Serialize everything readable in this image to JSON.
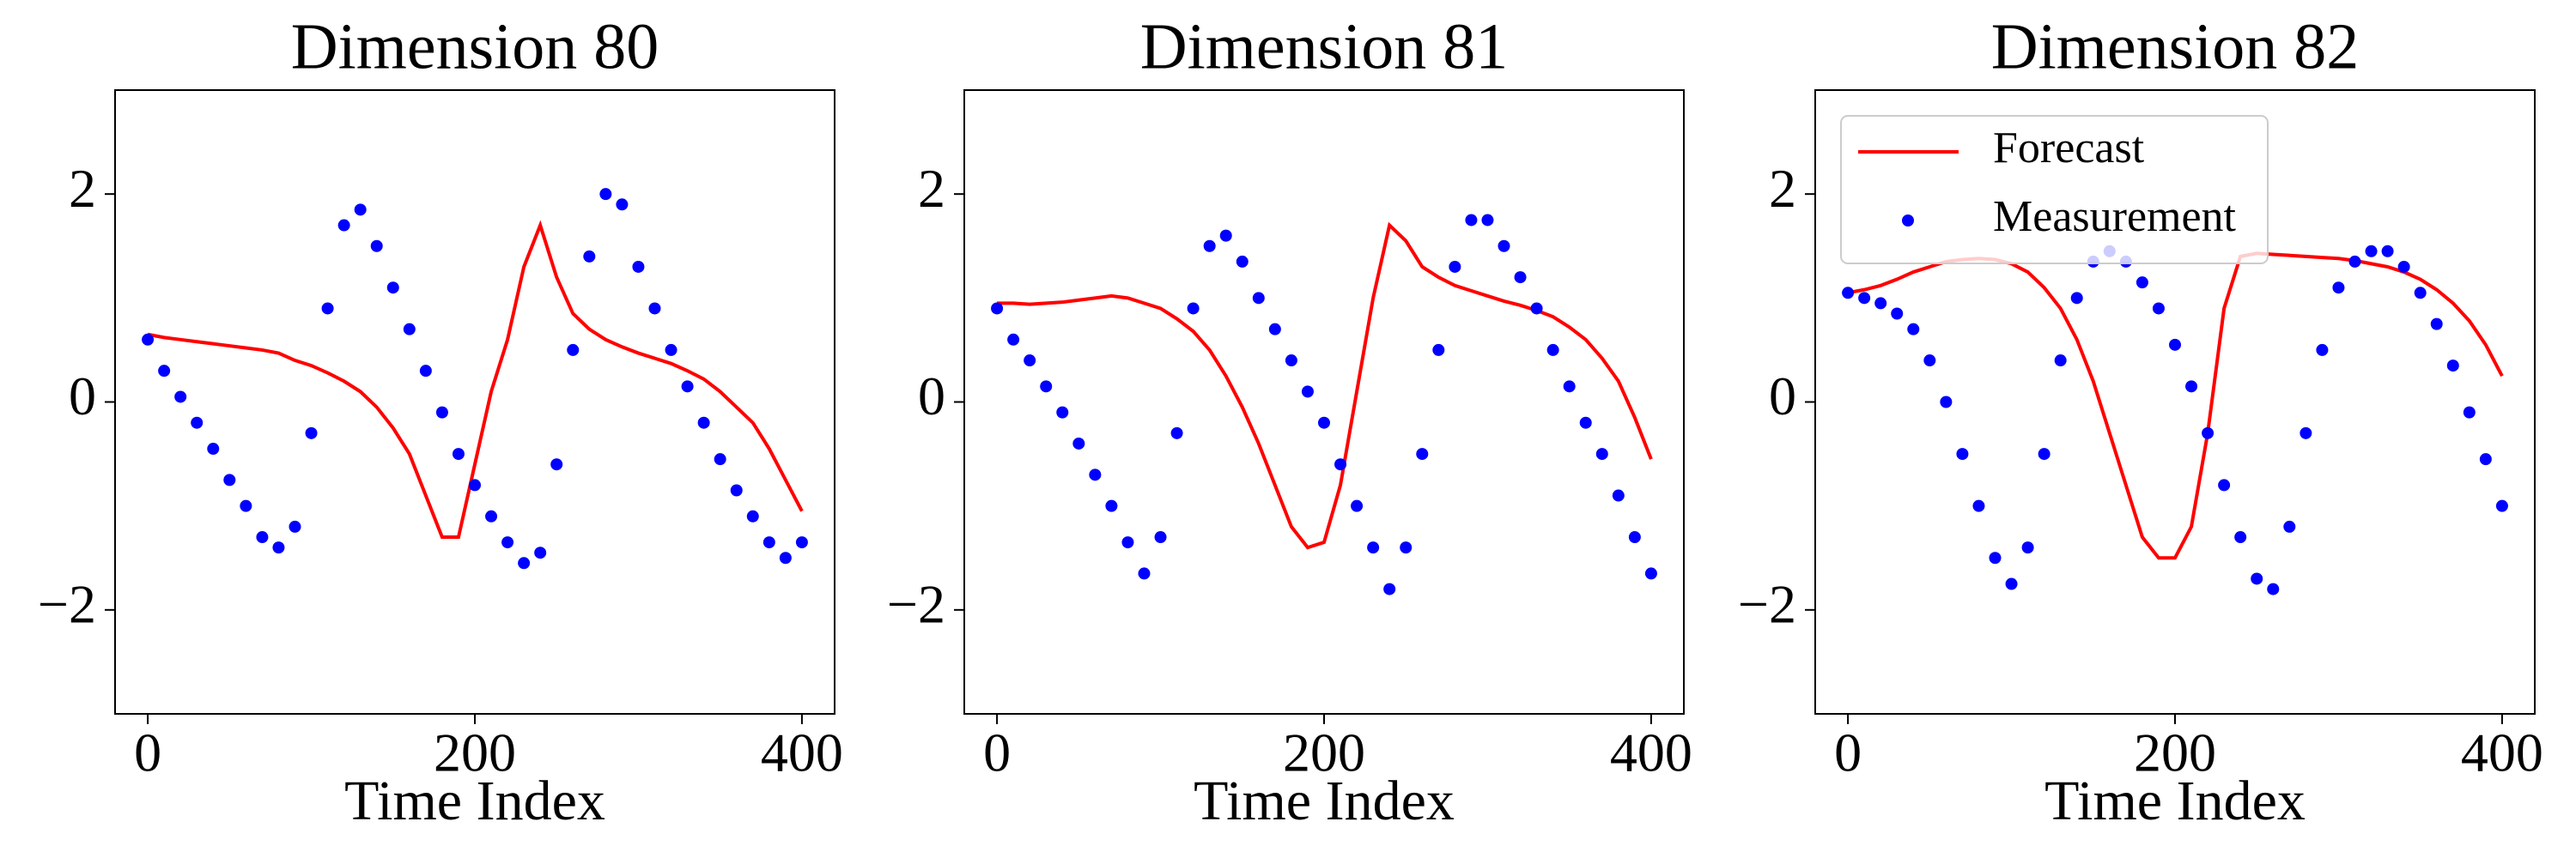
{
  "chart_data": [
    {
      "type": "line",
      "title": "Dimension 80",
      "xlabel": "Time Index",
      "xlim": [
        -20,
        420
      ],
      "ylim": [
        -3,
        3
      ],
      "xticks": [
        0,
        200,
        400
      ],
      "yticks": [
        {
          "value": -2,
          "label": "−2"
        },
        0,
        2
      ],
      "x": [
        0,
        10,
        20,
        30,
        40,
        50,
        60,
        70,
        80,
        90,
        100,
        110,
        120,
        130,
        140,
        150,
        160,
        170,
        180,
        190,
        200,
        210,
        220,
        230,
        240,
        250,
        260,
        270,
        280,
        290,
        300,
        310,
        320,
        330,
        340,
        350,
        360,
        370,
        380,
        390,
        400
      ],
      "series": [
        {
          "name": "Forecast",
          "color": "#ff0000",
          "values": [
            0.65,
            0.62,
            0.6,
            0.58,
            0.56,
            0.54,
            0.52,
            0.5,
            0.47,
            0.4,
            0.35,
            0.28,
            0.2,
            0.1,
            -0.05,
            -0.25,
            -0.5,
            -0.9,
            -1.3,
            -1.3,
            -0.6,
            0.1,
            0.6,
            1.3,
            1.7,
            1.2,
            0.85,
            0.7,
            0.6,
            0.53,
            0.47,
            0.42,
            0.37,
            0.3,
            0.22,
            0.1,
            -0.05,
            -0.2,
            -0.45,
            -0.75,
            -1.05
          ]
        },
        {
          "name": "Measurement",
          "color": "#0000ff",
          "values": [
            0.6,
            0.3,
            0.05,
            -0.2,
            -0.45,
            -0.75,
            -1.0,
            -1.3,
            -1.4,
            -1.2,
            -0.3,
            0.9,
            1.7,
            1.85,
            1.5,
            1.1,
            0.7,
            0.3,
            -0.1,
            -0.5,
            -0.8,
            -1.1,
            -1.35,
            -1.55,
            -1.45,
            -0.6,
            0.5,
            1.4,
            2.0,
            1.9,
            1.3,
            0.9,
            0.5,
            0.15,
            -0.2,
            -0.55,
            -0.85,
            -1.1,
            -1.35,
            -1.5,
            -1.35
          ]
        }
      ]
    },
    {
      "type": "line",
      "title": "Dimension 81",
      "xlabel": "Time Index",
      "xlim": [
        -20,
        420
      ],
      "ylim": [
        -3,
        3
      ],
      "xticks": [
        0,
        200,
        400
      ],
      "yticks": [
        {
          "value": -2,
          "label": "−2"
        },
        0,
        2
      ],
      "x": [
        0,
        10,
        20,
        30,
        40,
        50,
        60,
        70,
        80,
        90,
        100,
        110,
        120,
        130,
        140,
        150,
        160,
        170,
        180,
        190,
        200,
        210,
        220,
        230,
        240,
        250,
        260,
        270,
        280,
        290,
        300,
        310,
        320,
        330,
        340,
        350,
        360,
        370,
        380,
        390,
        400
      ],
      "series": [
        {
          "name": "Forecast",
          "color": "#ff0000",
          "values": [
            0.95,
            0.95,
            0.94,
            0.95,
            0.96,
            0.98,
            1.0,
            1.02,
            1.0,
            0.95,
            0.9,
            0.8,
            0.68,
            0.5,
            0.25,
            -0.05,
            -0.4,
            -0.8,
            -1.2,
            -1.4,
            -1.35,
            -0.8,
            0.1,
            1.0,
            1.7,
            1.55,
            1.3,
            1.2,
            1.12,
            1.07,
            1.02,
            0.97,
            0.93,
            0.88,
            0.82,
            0.72,
            0.6,
            0.42,
            0.2,
            -0.15,
            -0.55
          ]
        },
        {
          "name": "Measurement",
          "color": "#0000ff",
          "values": [
            0.9,
            0.6,
            0.4,
            0.15,
            -0.1,
            -0.4,
            -0.7,
            -1.0,
            -1.35,
            -1.65,
            -1.3,
            -0.3,
            0.9,
            1.5,
            1.6,
            1.35,
            1.0,
            0.7,
            0.4,
            0.1,
            -0.2,
            -0.6,
            -1.0,
            -1.4,
            -1.8,
            -1.4,
            -0.5,
            0.5,
            1.3,
            1.75,
            1.75,
            1.5,
            1.2,
            0.9,
            0.5,
            0.15,
            -0.2,
            -0.5,
            -0.9,
            -1.3,
            -1.65
          ]
        }
      ]
    },
    {
      "type": "line",
      "title": "Dimension 82",
      "xlabel": "Time Index",
      "xlim": [
        -20,
        420
      ],
      "ylim": [
        -3,
        3
      ],
      "xticks": [
        0,
        200,
        400
      ],
      "yticks": [
        {
          "value": -2,
          "label": "−2"
        },
        0,
        2
      ],
      "legend": "upper left",
      "x": [
        0,
        10,
        20,
        30,
        40,
        50,
        60,
        70,
        80,
        90,
        100,
        110,
        120,
        130,
        140,
        150,
        160,
        170,
        180,
        190,
        200,
        210,
        220,
        230,
        240,
        250,
        260,
        270,
        280,
        290,
        300,
        310,
        320,
        330,
        340,
        350,
        360,
        370,
        380,
        390,
        400
      ],
      "series": [
        {
          "name": "Forecast",
          "color": "#ff0000",
          "values": [
            1.05,
            1.08,
            1.12,
            1.18,
            1.25,
            1.3,
            1.35,
            1.37,
            1.38,
            1.37,
            1.33,
            1.25,
            1.1,
            0.9,
            0.6,
            0.2,
            -0.3,
            -0.8,
            -1.3,
            -1.5,
            -1.5,
            -1.2,
            -0.3,
            0.9,
            1.4,
            1.43,
            1.42,
            1.41,
            1.4,
            1.39,
            1.38,
            1.36,
            1.33,
            1.3,
            1.25,
            1.18,
            1.08,
            0.95,
            0.78,
            0.55,
            0.25
          ]
        },
        {
          "name": "Measurement",
          "color": "#0000ff",
          "values": [
            1.05,
            1.0,
            0.95,
            0.85,
            0.7,
            0.4,
            0.0,
            -0.5,
            -1.0,
            -1.5,
            -1.75,
            -1.4,
            -0.5,
            0.4,
            1.0,
            1.35,
            1.45,
            1.35,
            1.15,
            0.9,
            0.55,
            0.15,
            -0.3,
            -0.8,
            -1.3,
            -1.7,
            -1.8,
            -1.2,
            -0.3,
            0.5,
            1.1,
            1.35,
            1.45,
            1.45,
            1.3,
            1.05,
            0.75,
            0.35,
            -0.1,
            -0.55,
            -1.0
          ]
        }
      ]
    }
  ]
}
